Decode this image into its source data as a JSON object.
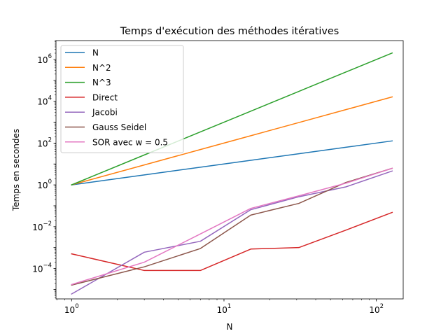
{
  "chart_data": {
    "type": "line",
    "title": "Temps d'exécution des méthodes itératives",
    "xlabel": "N",
    "ylabel": "Temps en secondes",
    "xscale": "log",
    "yscale": "log",
    "xlim": [
      0.79,
      150
    ],
    "ylim": [
      3.5e-06,
      8000000
    ],
    "x_ticks": [
      {
        "value": 1,
        "base": "10",
        "exp": "0"
      },
      {
        "value": 10,
        "base": "10",
        "exp": "1"
      },
      {
        "value": 100,
        "base": "10",
        "exp": "2"
      }
    ],
    "y_ticks": [
      {
        "value": 0.0001,
        "base": "10",
        "exp": "−4"
      },
      {
        "value": 0.01,
        "base": "10",
        "exp": "−2"
      },
      {
        "value": 1,
        "base": "10",
        "exp": "0"
      },
      {
        "value": 100,
        "base": "10",
        "exp": "2"
      },
      {
        "value": 10000,
        "base": "10",
        "exp": "4"
      },
      {
        "value": 1000000,
        "base": "10",
        "exp": "6"
      }
    ],
    "grid": false,
    "legend_position": "top-left",
    "series": [
      {
        "name": "N",
        "color": "#1f77b4",
        "x": [
          1,
          3,
          7,
          15,
          31,
          63,
          127
        ],
        "y": [
          1,
          3,
          7,
          15,
          31,
          63,
          127
        ]
      },
      {
        "name": "N^2",
        "color": "#ff7f0e",
        "x": [
          1,
          3,
          7,
          15,
          31,
          63,
          127
        ],
        "y": [
          1,
          9,
          49,
          225,
          961,
          3969,
          16129
        ]
      },
      {
        "name": "N^3",
        "color": "#2ca02c",
        "x": [
          1,
          3,
          7,
          15,
          31,
          63,
          127
        ],
        "y": [
          1,
          27,
          343,
          3375,
          29791,
          250047,
          2048383
        ]
      },
      {
        "name": "Direct",
        "color": "#d62728",
        "x": [
          1,
          3,
          7,
          15,
          31,
          63,
          127
        ],
        "y": [
          0.0005,
          8e-05,
          8e-05,
          0.00085,
          0.001,
          0.0068,
          0.048
        ]
      },
      {
        "name": "Jacobi",
        "color": "#9467bd",
        "x": [
          1,
          3,
          7,
          15,
          31,
          63,
          127
        ],
        "y": [
          6e-06,
          0.0006,
          0.002,
          0.065,
          0.27,
          0.8,
          4.6
        ]
      },
      {
        "name": "Gauss Seidel",
        "color": "#8c564b",
        "x": [
          1,
          3,
          7,
          15,
          31,
          63,
          127
        ],
        "y": [
          1.6e-05,
          0.00012,
          0.0009,
          0.036,
          0.13,
          1.3,
          6.2
        ]
      },
      {
        "name": "SOR avec w = 0.5",
        "color": "#e377c2",
        "x": [
          1,
          3,
          7,
          15,
          31,
          63,
          127
        ],
        "y": [
          1.7e-05,
          0.0002,
          0.0045,
          0.075,
          0.3,
          1.2,
          6.2
        ]
      }
    ]
  }
}
